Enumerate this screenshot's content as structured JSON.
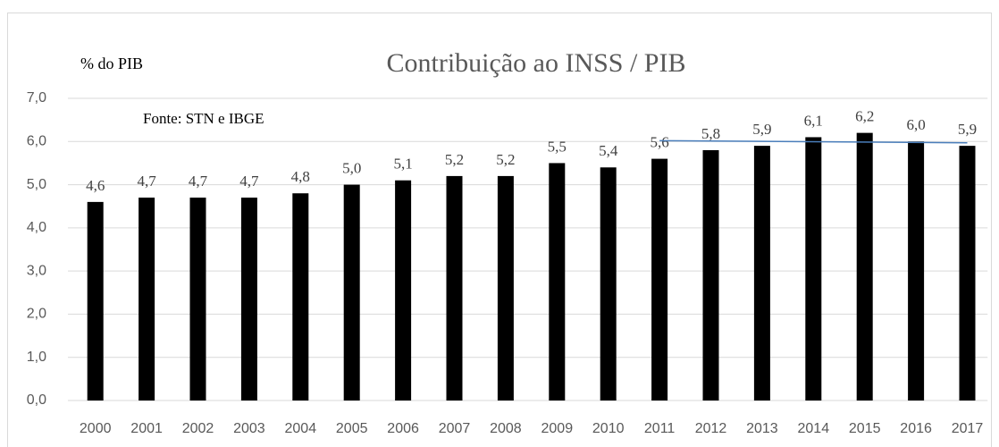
{
  "chart_data": {
    "type": "bar",
    "title": "Contribuição ao INSS / PIB",
    "y_label": "% do PIB",
    "annotation": "Fonte: STN e IBGE",
    "categories": [
      "2000",
      "2001",
      "2002",
      "2003",
      "2004",
      "2005",
      "2006",
      "2007",
      "2008",
      "2009",
      "2010",
      "2011",
      "2012",
      "2013",
      "2014",
      "2015",
      "2016",
      "2017"
    ],
    "values": [
      4.6,
      4.7,
      4.7,
      4.7,
      4.8,
      5.0,
      5.1,
      5.2,
      5.2,
      5.5,
      5.4,
      5.6,
      5.8,
      5.9,
      6.1,
      6.2,
      6.0,
      5.9
    ],
    "value_labels": [
      "4,6",
      "4,7",
      "4,7",
      "4,7",
      "4,8",
      "5,0",
      "5,1",
      "5,2",
      "5,2",
      "5,5",
      "5,4",
      "5,6",
      "5,8",
      "5,9",
      "6,1",
      "6,2",
      "6,0",
      "5,9"
    ],
    "color": "#000000",
    "ylim": [
      0,
      7
    ],
    "yticks": [
      {
        "value": 0,
        "label": "0,0"
      },
      {
        "value": 1,
        "label": "1,0"
      },
      {
        "value": 2,
        "label": "2,0"
      },
      {
        "value": 3,
        "label": "3,0"
      },
      {
        "value": 4,
        "label": "4,0"
      },
      {
        "value": 5,
        "label": "5,0"
      },
      {
        "value": 6,
        "label": "6,0"
      },
      {
        "value": 7,
        "label": "7,0"
      }
    ],
    "grid": true,
    "trend": {
      "x": [
        "2011",
        "2017"
      ],
      "values": [
        6.02,
        5.97
      ],
      "color": "#4a7ebb"
    }
  }
}
